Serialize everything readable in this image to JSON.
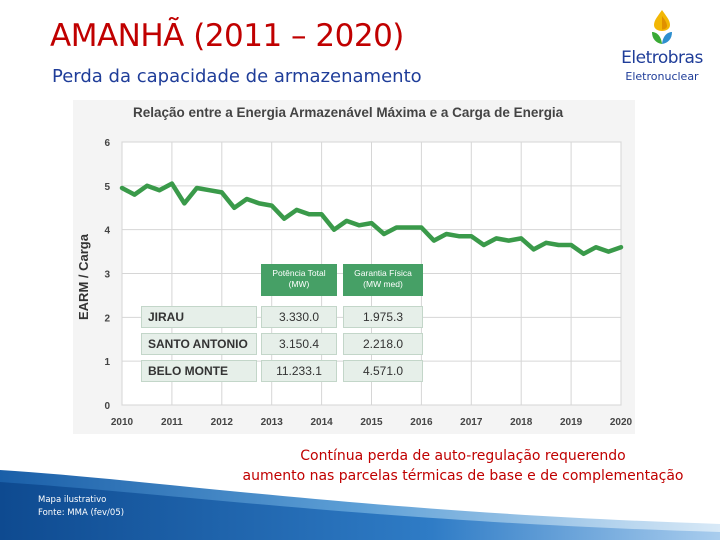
{
  "header": {
    "title": "AMANHÃ (2011 – 2020)",
    "subtitle": "Perda da capacidade de armazenamento"
  },
  "logo": {
    "name": "Eletrobras",
    "sub": "Eletronuclear",
    "colors": [
      "#2e8fcf",
      "#3aaa35",
      "#f2b705",
      "#1f3d99"
    ]
  },
  "chart_data": {
    "type": "line",
    "title": "Relação entre a Energia Armazenável Máxima e a Carga de Energia",
    "xlabel": "",
    "ylabel": "EARM / Carga",
    "xlim": [
      2010,
      2020
    ],
    "ylim": [
      0,
      6
    ],
    "x_ticks": [
      "2010",
      "2011",
      "2012",
      "2013",
      "2014",
      "2015",
      "2016",
      "2017",
      "2018",
      "2019",
      "2020"
    ],
    "y_ticks": [
      "0",
      "1",
      "2",
      "3",
      "4",
      "5",
      "6"
    ],
    "grid": true,
    "line_color": "#3a9a4a",
    "series": [
      {
        "x": [
          2010.0,
          2010.25,
          2010.5,
          2010.75,
          2011.0,
          2011.25,
          2011.5,
          2011.75,
          2012.0,
          2012.25,
          2012.5,
          2012.75,
          2013.0,
          2013.25,
          2013.5,
          2013.75,
          2014.0,
          2014.25,
          2014.5,
          2014.75,
          2015.0,
          2015.25,
          2015.5,
          2015.75,
          2016.0,
          2016.25,
          2016.5,
          2016.75,
          2017.0,
          2017.25,
          2017.5,
          2017.75,
          2018.0,
          2018.25,
          2018.5,
          2018.75,
          2019.0,
          2019.25,
          2019.5,
          2019.75,
          2020.0
        ],
        "values": [
          4.95,
          4.8,
          5.0,
          4.9,
          5.05,
          4.6,
          4.95,
          4.9,
          4.85,
          4.5,
          4.7,
          4.6,
          4.55,
          4.25,
          4.45,
          4.35,
          4.35,
          4.0,
          4.2,
          4.1,
          4.15,
          3.9,
          4.05,
          4.05,
          4.05,
          3.75,
          3.9,
          3.85,
          3.85,
          3.65,
          3.8,
          3.75,
          3.8,
          3.55,
          3.7,
          3.65,
          3.65,
          3.45,
          3.6,
          3.5,
          3.6
        ]
      }
    ]
  },
  "table": {
    "headers": [
      "Potência Total\n(MW)",
      "Garantia Física\n(MW med)"
    ],
    "rows": [
      {
        "name": "JIRAU",
        "potencia": "3.330.0",
        "garantia": "1.975.3"
      },
      {
        "name": "SANTO ANTONIO",
        "potencia": "3.150.4",
        "garantia": "2.218.0"
      },
      {
        "name": "BELO MONTE",
        "potencia": "11.233.1",
        "garantia": "4.571.0"
      }
    ]
  },
  "caption": {
    "line1": "Contínua perda de auto-regulação requerendo",
    "line2": "aumento nas parcelas térmicas de base e de complementação"
  },
  "footer": {
    "source_line1": "Mapa ilustrativo",
    "source_line2": "Fonte: MMA (fev/05)"
  }
}
